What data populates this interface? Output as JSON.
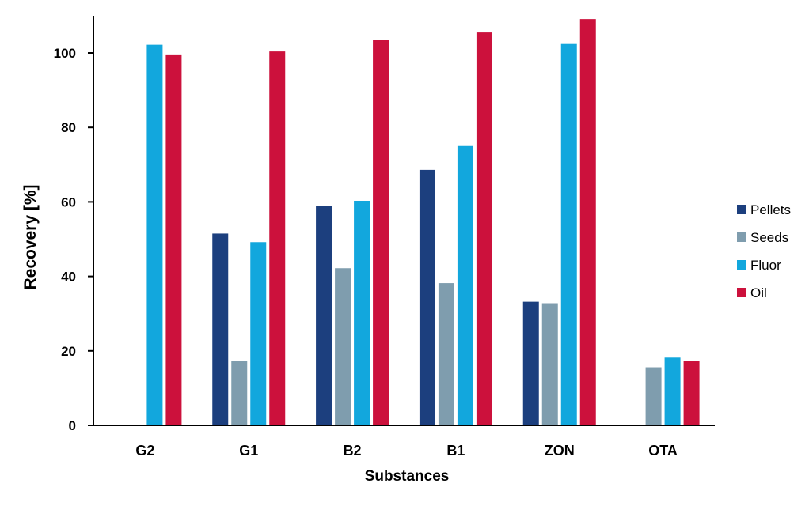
{
  "chart_data": {
    "type": "bar",
    "title": "",
    "xlabel": "Substances",
    "ylabel": "Recovery [%]",
    "ylim": [
      0,
      110
    ],
    "yticks": [
      0,
      20,
      40,
      60,
      80,
      100
    ],
    "grid": false,
    "legend_position": "right",
    "categories": [
      "G2",
      "G1",
      "B2",
      "B1",
      "ZON",
      "OTA"
    ],
    "series": [
      {
        "name": "Pellets",
        "color": "#1c3f7e",
        "values": [
          null,
          51.5,
          58.9,
          68.6,
          33.2,
          null
        ]
      },
      {
        "name": "Seeds",
        "color": "#7f9dae",
        "values": [
          null,
          17.2,
          42.2,
          38.2,
          32.8,
          15.6
        ]
      },
      {
        "name": "Fluor",
        "color": "#12a7dd",
        "values": [
          102.2,
          49.2,
          60.3,
          75.0,
          102.4,
          18.2
        ]
      },
      {
        "name": "Oil",
        "color": "#cc113c",
        "values": [
          99.6,
          100.4,
          103.4,
          105.5,
          109.1,
          17.3
        ]
      }
    ]
  }
}
